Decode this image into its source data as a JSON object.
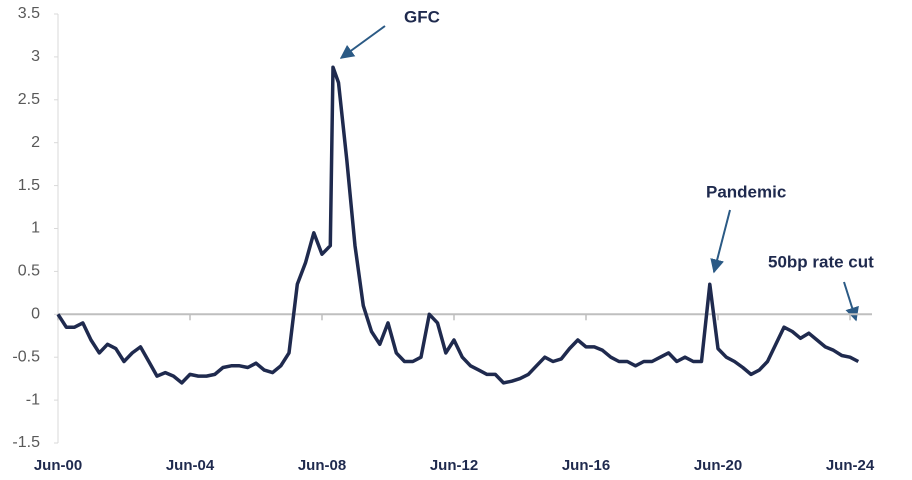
{
  "chart_data": {
    "type": "line",
    "x": [
      "2000-06",
      "2000-09",
      "2000-12",
      "2001-03",
      "2001-06",
      "2001-09",
      "2001-12",
      "2002-03",
      "2002-06",
      "2002-09",
      "2002-12",
      "2003-03",
      "2003-06",
      "2003-09",
      "2003-12",
      "2004-03",
      "2004-06",
      "2004-09",
      "2004-12",
      "2005-03",
      "2005-06",
      "2005-09",
      "2005-12",
      "2006-03",
      "2006-06",
      "2006-09",
      "2006-12",
      "2007-03",
      "2007-06",
      "2007-09",
      "2007-12",
      "2008-03",
      "2008-06",
      "2008-09",
      "2008-10",
      "2008-12",
      "2009-03",
      "2009-06",
      "2009-09",
      "2009-12",
      "2010-03",
      "2010-06",
      "2010-09",
      "2010-12",
      "2011-03",
      "2011-06",
      "2011-09",
      "2011-12",
      "2012-03",
      "2012-06",
      "2012-09",
      "2012-12",
      "2013-03",
      "2013-06",
      "2013-09",
      "2013-12",
      "2014-03",
      "2014-06",
      "2014-09",
      "2014-12",
      "2015-03",
      "2015-06",
      "2015-09",
      "2015-12",
      "2016-03",
      "2016-06",
      "2016-09",
      "2016-12",
      "2017-03",
      "2017-06",
      "2017-09",
      "2017-12",
      "2018-03",
      "2018-06",
      "2018-09",
      "2018-12",
      "2019-03",
      "2019-06",
      "2019-09",
      "2019-12",
      "2020-03",
      "2020-06",
      "2020-09",
      "2020-12",
      "2021-03",
      "2021-06",
      "2021-09",
      "2021-12",
      "2022-03",
      "2022-06",
      "2022-09",
      "2022-12",
      "2023-03",
      "2023-06",
      "2023-09",
      "2023-12",
      "2024-03",
      "2024-06",
      "2024-09"
    ],
    "series": [
      {
        "color": "#1f2a4e",
        "values": [
          0.0,
          -0.15,
          -0.15,
          -0.1,
          -0.3,
          -0.45,
          -0.35,
          -0.4,
          -0.55,
          -0.45,
          -0.38,
          -0.55,
          -0.72,
          -0.68,
          -0.72,
          -0.8,
          -0.7,
          -0.72,
          -0.72,
          -0.7,
          -0.62,
          -0.6,
          -0.6,
          -0.62,
          -0.57,
          -0.65,
          -0.68,
          -0.6,
          -0.45,
          0.35,
          0.6,
          0.95,
          0.7,
          0.8,
          2.88,
          2.7,
          1.8,
          0.8,
          0.1,
          -0.2,
          -0.35,
          -0.1,
          -0.45,
          -0.55,
          -0.55,
          -0.5,
          0.0,
          -0.1,
          -0.45,
          -0.3,
          -0.5,
          -0.6,
          -0.65,
          -0.7,
          -0.7,
          -0.8,
          -0.78,
          -0.75,
          -0.7,
          -0.6,
          -0.5,
          -0.55,
          -0.52,
          -0.4,
          -0.3,
          -0.38,
          -0.38,
          -0.42,
          -0.5,
          -0.55,
          -0.55,
          -0.6,
          -0.55,
          -0.55,
          -0.5,
          -0.45,
          -0.55,
          -0.5,
          -0.55,
          -0.55,
          0.35,
          -0.4,
          -0.5,
          -0.55,
          -0.62,
          -0.7,
          -0.65,
          -0.55,
          -0.35,
          -0.15,
          -0.2,
          -0.28,
          -0.22,
          -0.3,
          -0.38,
          -0.42,
          -0.48,
          -0.5,
          -0.55
        ]
      }
    ],
    "ylim": [
      -1.5,
      3.5
    ],
    "yticks": [
      -1.5,
      -1,
      -0.5,
      0,
      0.5,
      1,
      1.5,
      2,
      2.5,
      3,
      3.5
    ],
    "xticks": [
      {
        "value": "2000-06",
        "label": "Jun-00"
      },
      {
        "value": "2004-06",
        "label": "Jun-04"
      },
      {
        "value": "2008-06",
        "label": "Jun-08"
      },
      {
        "value": "2012-06",
        "label": "Jun-12"
      },
      {
        "value": "2016-06",
        "label": "Jun-16"
      },
      {
        "value": "2020-06",
        "label": "Jun-20"
      },
      {
        "value": "2024-06",
        "label": "Jun-24"
      }
    ],
    "annotations": [
      {
        "text": "GFC"
      },
      {
        "text": "Pandemic"
      },
      {
        "text": "50bp rate cut"
      }
    ]
  }
}
